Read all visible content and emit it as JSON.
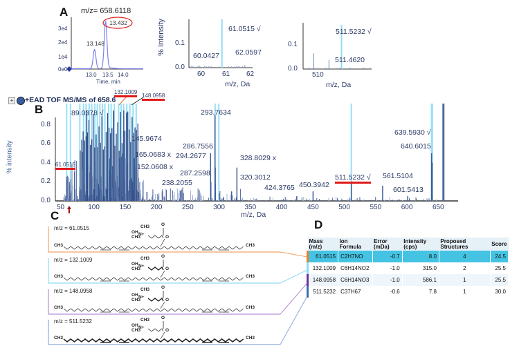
{
  "panels": {
    "a": "A",
    "b": "B",
    "c": "C",
    "d": "D"
  },
  "chart_data": [
    {
      "type": "line",
      "title": "m/z= 658.6118",
      "xlabel": "Time, min",
      "ylabel": "",
      "xticks": [
        "13.0",
        "13.5",
        "14.0"
      ],
      "yticks": [
        "0e0",
        "1e4",
        "2e4",
        "3e4"
      ],
      "xlim": [
        12.55,
        14.4
      ],
      "ylim": [
        0,
        40000
      ],
      "peaks": [
        {
          "rt": 13.148,
          "height": 15500,
          "label": "13.148"
        },
        {
          "rt": 13.432,
          "height": 38000,
          "label": "13.432",
          "circled": true
        }
      ]
    },
    {
      "type": "bar",
      "xlabel": "m/z, Da",
      "ylabel": "% Intensity",
      "xticks": [
        "60",
        "61",
        "62"
      ],
      "yticks": [
        "0.0",
        "0.1"
      ],
      "xlim": [
        59.6,
        62.4
      ],
      "ylim": [
        0,
        0.2
      ],
      "peaks": [
        {
          "mz": 60.0427,
          "intensity": 0.01,
          "label": "60.0427"
        },
        {
          "mz": 61.0515,
          "intensity": 0.2,
          "label": "61.0515 √",
          "highlight": true
        },
        {
          "mz": 62.0597,
          "intensity": 0.01,
          "label": "62.0597"
        }
      ]
    },
    {
      "type": "bar",
      "xlabel": "m/z, Da",
      "ylabel": "",
      "xticks": [
        "510"
      ],
      "yticks": [
        "0.0",
        "0.1"
      ],
      "xlim": [
        509.0,
        513.5
      ],
      "ylim": [
        0,
        0.2
      ],
      "peaks": [
        {
          "mz": 509.7,
          "intensity": 0.068,
          "label": ""
        },
        {
          "mz": 510.7,
          "intensity": 0.04,
          "label": ""
        },
        {
          "mz": 511.462,
          "intensity": 0.005,
          "label": "511.4620"
        },
        {
          "mz": 511.5232,
          "intensity": 0.19,
          "label": "511.5232 √",
          "highlight": true
        }
      ]
    },
    {
      "type": "bar",
      "title": "+EAD TOF MS/MS of 658.6",
      "xlabel": "m/z, Da",
      "ylabel": "% intensity",
      "xticks": [
        "50",
        "100",
        "150",
        "200",
        "250",
        "300",
        "350",
        "400",
        "450",
        "500",
        "550",
        "600",
        "650"
      ],
      "yticks": [
        "0.0",
        "0.2",
        "0.4",
        "0.6",
        "0.8"
      ],
      "xlim": [
        39,
        672
      ],
      "ylim": [
        0,
        0.95
      ],
      "highlight_color": "#8fdcf5",
      "peaks": [
        {
          "mz": 61.0515,
          "intensity": 0.2,
          "label": "61.0515",
          "underlined": true
        },
        {
          "mz": 89.0378,
          "intensity": 0.95,
          "label": "89.0378 √"
        },
        {
          "mz": 132.1009,
          "intensity": 0.95,
          "label": "132.1009",
          "underlined": true
        },
        {
          "mz": 145.9674,
          "intensity": 0.5,
          "label": "145.9674"
        },
        {
          "mz": 148.0958,
          "intensity": 0.95,
          "label": "148.0958",
          "underlined": true
        },
        {
          "mz": 152.0608,
          "intensity": 0.45,
          "label": "152.0608 x"
        },
        {
          "mz": 165.0683,
          "intensity": 0.45,
          "label": "165.0683 x"
        },
        {
          "mz": 238.2055,
          "intensity": 0.11,
          "label": "238.2055"
        },
        {
          "mz": 286.7556,
          "intensity": 0.5,
          "label": "286.7556"
        },
        {
          "mz": 287.2598,
          "intensity": 0.2,
          "label": "287.2598"
        },
        {
          "mz": 293.7634,
          "intensity": 0.9,
          "label": "293.7634"
        },
        {
          "mz": 294.2677,
          "intensity": 0.35,
          "label": "294.2677"
        },
        {
          "mz": 320.3012,
          "intensity": 0.1,
          "label": "320.3012"
        },
        {
          "mz": 328.8029,
          "intensity": 0.35,
          "label": "328.8029 x"
        },
        {
          "mz": 424.3765,
          "intensity": 0.05,
          "label": "424.3765"
        },
        {
          "mz": 450.3942,
          "intensity": 0.1,
          "label": "450.3942"
        },
        {
          "mz": 511.5232,
          "intensity": 0.2,
          "label": "511.5232 √",
          "underlined": true
        },
        {
          "mz": 561.5104,
          "intensity": 0.16,
          "label": "561.5104"
        },
        {
          "mz": 601.5413,
          "intensity": 0.05,
          "label": "601.5413"
        },
        {
          "mz": 639.593,
          "intensity": 0.5,
          "label": "639.5930 √"
        },
        {
          "mz": 640.6015,
          "intensity": 0.4,
          "label": "640.6015"
        },
        {
          "mz": 658.6,
          "intensity": 0.95,
          "label": ""
        }
      ]
    }
  ],
  "structures": [
    {
      "label": "m/z = 61.0515",
      "color": "#f0a36a"
    },
    {
      "label": "m/z = 132.1009",
      "color": "#8fdcf5"
    },
    {
      "label": "m/z = 148.0958",
      "color": "#b58fd6"
    },
    {
      "label": "m/z = 511.5232",
      "color": "#8eaadb"
    }
  ],
  "chem": {
    "ch3": "CH3",
    "oh": "OH",
    "n": "N+",
    "o": "O"
  },
  "table": {
    "headers": [
      "Mass (m/z)",
      "Ion Formula",
      "Error (mDa)",
      "Intensity (cps)",
      "Proposed Structures",
      "Score"
    ],
    "rows": [
      {
        "mass": "61.0515",
        "formula": "C2H7NO",
        "error": "-0.7",
        "intensity": "8.0",
        "structures": "4",
        "score": "24.5",
        "color": "#f07d28"
      },
      {
        "mass": "132.1009",
        "formula": "C6H14NO2",
        "error": "-1.0",
        "intensity": "315.0",
        "structures": "2",
        "score": "25.5",
        "color": "#8fdcf5"
      },
      {
        "mass": "148.0958",
        "formula": "C6H14NO3",
        "error": "-1.0",
        "intensity": "586.1",
        "structures": "1",
        "score": "25.5",
        "color": "#7030a0"
      },
      {
        "mass": "511.5232",
        "formula": "C37H67",
        "error": "-0.6",
        "intensity": "7.8",
        "structures": "1",
        "score": "30.0",
        "color": "#3c6eb4"
      }
    ]
  }
}
